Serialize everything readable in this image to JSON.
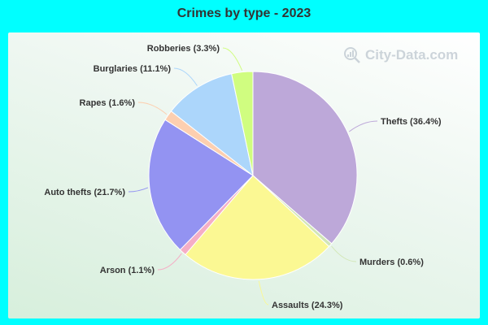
{
  "title": "Crimes by type - 2023",
  "watermark": "City-Data.com",
  "chart_data": {
    "type": "pie",
    "title": "Crimes by type - 2023",
    "slices": [
      {
        "name": "Thefts",
        "value": 36.4,
        "label": "Thefts (36.4%)",
        "color": "#bda8d9"
      },
      {
        "name": "Murders",
        "value": 0.6,
        "label": "Murders (0.6%)",
        "color": "#d2e6b5"
      },
      {
        "name": "Assaults",
        "value": 24.3,
        "label": "Assaults (24.3%)",
        "color": "#fbf893"
      },
      {
        "name": "Arson",
        "value": 1.1,
        "label": "Arson (1.1%)",
        "color": "#f5aec6"
      },
      {
        "name": "Auto thefts",
        "value": 21.7,
        "label": "Auto thefts (21.7%)",
        "color": "#9393f2"
      },
      {
        "name": "Rapes",
        "value": 1.6,
        "label": "Rapes (1.6%)",
        "color": "#fdcfb0"
      },
      {
        "name": "Burglaries",
        "value": 11.1,
        "label": "Burglaries (11.1%)",
        "color": "#acd6fb"
      },
      {
        "name": "Robberies",
        "value": 3.3,
        "label": "Robberies (3.3%)",
        "color": "#d0fd80"
      }
    ],
    "start": "12 o'clock",
    "direction": "clockwise"
  }
}
